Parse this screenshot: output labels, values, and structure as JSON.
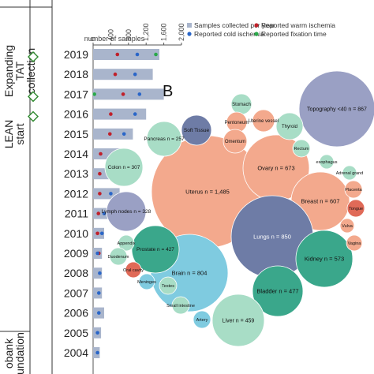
{
  "panel_b_label": "B",
  "side_labels": {
    "expanding_tat_collection": [
      "Expanding",
      "TAT",
      "collection"
    ],
    "lean_start": [
      "LEAN",
      "start"
    ],
    "biobank_foundation": [
      "obank",
      "undation"
    ]
  },
  "colors": {
    "bar": "#a9b5cc",
    "warm": "#c0202a",
    "cold": "#2a66c8",
    "fixation": "#2aa84a",
    "diamond": "#2f8a2f",
    "axis_line": "#333333",
    "bubble_salmon": "#f3a98d",
    "bubble_navy": "#6e7ca6",
    "bubble_mint": "#a8ddc6",
    "bubble_teal": "#3aa78b",
    "bubble_sky": "#7fcbe0",
    "bubble_red": "#e06a58",
    "bubble_lavender": "#9aa0c4"
  },
  "chart_data": [
    {
      "type": "bar",
      "title": "",
      "xlabel": "number of samples",
      "ylabel": "",
      "xlim": [
        0,
        2000
      ],
      "x_ticks": [
        "0",
        "400",
        "800",
        "1,200",
        "1,600",
        "2,000"
      ],
      "legend": [
        {
          "name": "Samples collected per year",
          "marker": "square"
        },
        {
          "name": "Reported warm ischemia",
          "marker": "dot"
        },
        {
          "name": "Reported cold ischemia",
          "marker": "dot"
        },
        {
          "name": "Reported fixation time",
          "marker": "dot"
        }
      ],
      "categories": [
        "2019",
        "2018",
        "2017",
        "2016",
        "2015",
        "2014",
        "2013",
        "2012",
        "2011",
        "2010",
        "2009",
        "2008",
        "2007",
        "2006",
        "2005",
        "2004"
      ],
      "series": [
        {
          "name": "Samples collected per year",
          "values": [
            1500,
            1350,
            1600,
            1200,
            900,
            700,
            650,
            600,
            450,
            250,
            200,
            200,
            200,
            250,
            180,
            150
          ]
        },
        {
          "name": "Reported warm ischemia",
          "values": [
            550,
            500,
            680,
            400,
            380,
            170,
            150,
            150,
            120,
            100,
            130,
            0,
            0,
            0,
            0,
            0
          ]
        },
        {
          "name": "Reported cold ischemia",
          "values": [
            1000,
            950,
            1050,
            950,
            700,
            550,
            500,
            400,
            250,
            200,
            100,
            150,
            130,
            130,
            100,
            100
          ]
        },
        {
          "name": "Reported fixation time",
          "values": [
            1420,
            0,
            30,
            0,
            0,
            0,
            0,
            0,
            0,
            0,
            0,
            0,
            0,
            0,
            0,
            0
          ]
        }
      ],
      "milestones": [
        "2019",
        "2017",
        "2016"
      ]
    },
    {
      "type": "bubble",
      "title": "",
      "bubbles": [
        {
          "label": "Topography <40 n = 867",
          "value": 867,
          "color": "lavender"
        },
        {
          "label": "Uterus n = 1,485",
          "value": 1485,
          "color": "salmon"
        },
        {
          "label": "Ovary n = 673",
          "value": 673,
          "color": "salmon"
        },
        {
          "label": "Breast n = 607",
          "value": 607,
          "color": "salmon"
        },
        {
          "label": "Lungs n = 850",
          "value": 850,
          "color": "navy"
        },
        {
          "label": "Brain n = 804",
          "value": 804,
          "color": "sky"
        },
        {
          "label": "Kidney n = 573",
          "value": 573,
          "color": "teal"
        },
        {
          "label": "Bladder n = 477",
          "value": 477,
          "color": "teal"
        },
        {
          "label": "Liver n = 459",
          "value": 459,
          "color": "mint"
        },
        {
          "label": "Prostate n = 427",
          "value": 427,
          "color": "teal"
        },
        {
          "label": "Lymph nodes n = 328",
          "value": 328,
          "color": "lavender"
        },
        {
          "label": "Colon n = 307",
          "value": 307,
          "color": "mint"
        },
        {
          "label": "Pancreas n = 257",
          "value": 257,
          "color": "mint"
        },
        {
          "label": "Soft Tissue",
          "color": "navy"
        },
        {
          "label": "Stomach",
          "color": "mint"
        },
        {
          "label": "Pentoneum",
          "color": "salmon"
        },
        {
          "label": "Uterine vessel",
          "color": "salmon"
        },
        {
          "label": "Omentum",
          "color": "salmon"
        },
        {
          "label": "Thyroid",
          "color": "mint"
        },
        {
          "label": "Rectum",
          "color": "mint"
        },
        {
          "label": "esophagus",
          "color": "mint"
        },
        {
          "label": "Adrenal grand",
          "color": "mint"
        },
        {
          "label": "Placenta",
          "color": "salmon"
        },
        {
          "label": "Tongue",
          "color": "red"
        },
        {
          "label": "Vulva",
          "color": "salmon"
        },
        {
          "label": "Vagina",
          "color": "salmon"
        },
        {
          "label": "Appendix",
          "color": "mint"
        },
        {
          "label": "Duodenum",
          "color": "mint"
        },
        {
          "label": "Oral cavity",
          "color": "red"
        },
        {
          "label": "Meninges",
          "color": "sky"
        },
        {
          "label": "Testes",
          "color": "mint"
        },
        {
          "label": "Small intestine",
          "color": "mint"
        },
        {
          "label": "Artery",
          "color": "sky"
        }
      ]
    }
  ]
}
